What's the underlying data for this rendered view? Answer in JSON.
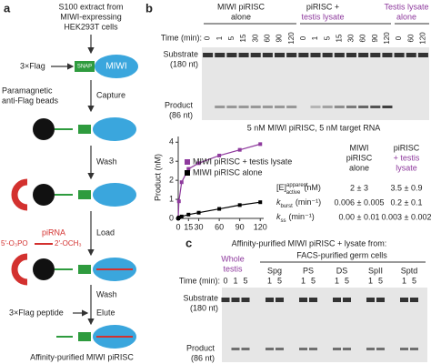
{
  "panel_a": {
    "label": "a",
    "source": [
      "S100 extract from",
      "MIWI-expressing",
      "HEK293T cells"
    ],
    "tag": "3×Flag",
    "snap": "SNAP",
    "protein": "MIWI",
    "beads": [
      "Paramagnetic",
      "anti-Flag beads"
    ],
    "steps": [
      "Capture",
      "Wash",
      "Load",
      "Wash",
      "Elute"
    ],
    "pirna": "piRNA",
    "pirna_5": "5′-O₃PO",
    "pirna_3": "2′-OCH₃",
    "peptide": "3×Flag peptide",
    "result": "Affinity-purified MIWI piRISC"
  },
  "panel_b": {
    "label": "b",
    "headers": [
      [
        "MIWI piRISC",
        "alone"
      ],
      [
        "piRISC +",
        "testis lysate"
      ],
      [
        "Testis lysate",
        "alone"
      ]
    ],
    "time_label": "Time (min):",
    "times": [
      "0",
      "1",
      "5",
      "15",
      "30",
      "60",
      "90",
      "120",
      "0",
      "1",
      "5",
      "15",
      "30",
      "60",
      "90",
      "120",
      "0",
      "60",
      "120"
    ],
    "substrate": "Substrate",
    "substrate_size": "(180 nt)",
    "product": "Product",
    "product_size": "(86 nt)",
    "caption": "5 nM MIWI piRISC, 5 nM target RNA",
    "table": {
      "columns": [
        [
          "MIWI",
          "piRISC",
          "alone"
        ],
        [
          "piRISC",
          "+ testis",
          "lysate"
        ]
      ],
      "rows": [
        {
          "symbol": "[E]",
          "sup": "apparent",
          "sub": "active",
          "unit": "(nM)",
          "cells": [
            "2 ± 3",
            "3.5 ± 0.9"
          ]
        },
        {
          "symbol": "k",
          "sub": "burst",
          "unit": "(min⁻¹)",
          "cells": [
            "0.006 ± 0.005",
            "0.2 ± 0.1"
          ]
        },
        {
          "symbol": "k",
          "sub": "ss",
          "unit": "(min⁻¹)",
          "cells": [
            "0.00 ± 0.01",
            "0.003 ± 0.002"
          ]
        }
      ]
    }
  },
  "chart_data": {
    "type": "line",
    "y_label": "Product (nM)",
    "x": [
      0,
      1,
      5,
      15,
      30,
      60,
      90,
      120
    ],
    "xlim": [
      0,
      125
    ],
    "xticks": [
      0,
      15,
      30,
      60,
      90,
      120
    ],
    "ylim": [
      0,
      4.3
    ],
    "yticks": [
      0,
      1,
      2,
      3,
      4
    ],
    "series": [
      {
        "name": "MIWI piRISC + testis lysate",
        "color": "#8e3a9d",
        "values": [
          0,
          0.9,
          1.9,
          2.6,
          2.9,
          3.3,
          3.6,
          3.9
        ]
      },
      {
        "name": "MIWI piRISC alone",
        "color": "#000000",
        "values": [
          0,
          0.05,
          0.1,
          0.2,
          0.3,
          0.5,
          0.7,
          0.85
        ]
      }
    ]
  },
  "panel_c": {
    "label": "c",
    "title": "Affinity-purified MIWI piRISC + lysate from:",
    "whole": [
      "Whole",
      "testis"
    ],
    "facs": "FACS-purified germ cells",
    "groups": [
      "Spg",
      "PS",
      "DS",
      "SpII",
      "Sptd"
    ],
    "time_label": "Time (min):",
    "times": [
      "0",
      "1",
      "5",
      "1",
      "5",
      "1",
      "5",
      "1",
      "5",
      "1",
      "5",
      "1",
      "5"
    ],
    "substrate": "Substrate",
    "substrate_size": "(180 nt)",
    "product": "Product",
    "product_size": "(86 nt)"
  }
}
